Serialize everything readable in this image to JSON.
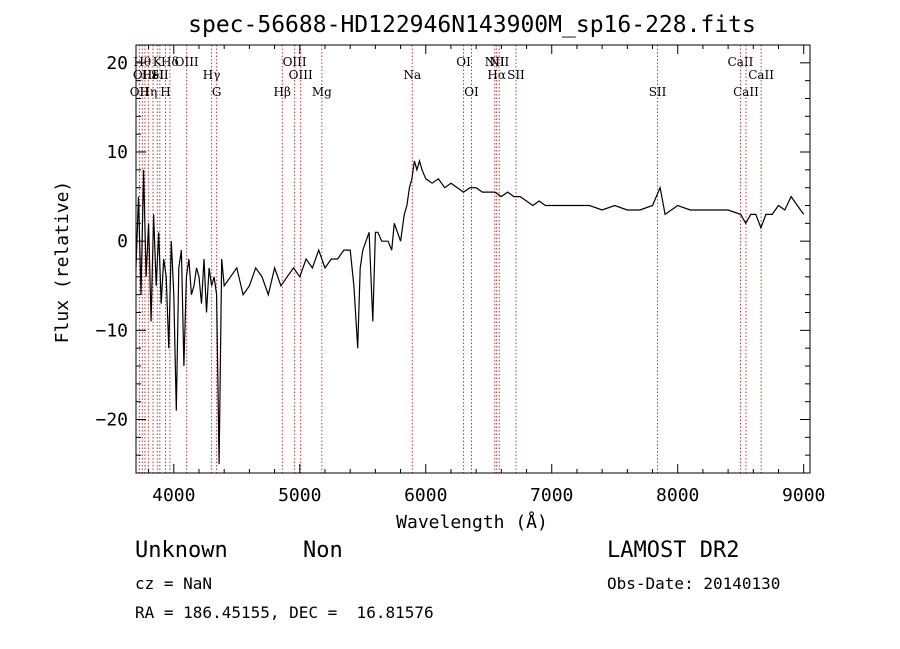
{
  "chart_data": {
    "type": "line",
    "title": "spec-56688-HD122946N143900M_sp16-228.fits",
    "xlabel": "Wavelength (Å)",
    "ylabel": "Flux (relative)",
    "xlim": [
      3700,
      9050
    ],
    "ylim": [
      -26,
      22
    ],
    "xticks": [
      4000,
      5000,
      6000,
      7000,
      8000,
      9000
    ],
    "yticks": [
      -20,
      -10,
      0,
      10,
      20
    ],
    "xtick_labels": [
      "4000",
      "5000",
      "6000",
      "7000",
      "8000",
      "9000"
    ],
    "ytick_labels": [
      "−20",
      "−10",
      "0",
      "10",
      "20"
    ],
    "grid": false,
    "line_color": "#000000",
    "marker_color": "#cc3333",
    "spectrum": {
      "x": [
        3700,
        3720,
        3740,
        3760,
        3780,
        3800,
        3820,
        3840,
        3860,
        3880,
        3900,
        3920,
        3940,
        3960,
        3980,
        4000,
        4020,
        4040,
        4060,
        4080,
        4100,
        4120,
        4140,
        4160,
        4180,
        4200,
        4220,
        4240,
        4260,
        4280,
        4300,
        4320,
        4340,
        4360,
        4380,
        4400,
        4450,
        4500,
        4550,
        4600,
        4650,
        4700,
        4750,
        4800,
        4850,
        4900,
        4950,
        5000,
        5050,
        5100,
        5150,
        5200,
        5250,
        5300,
        5350,
        5400,
        5430,
        5460,
        5480,
        5500,
        5550,
        5580,
        5600,
        5620,
        5650,
        5700,
        5730,
        5750,
        5800,
        5830,
        5850,
        5870,
        5890,
        5910,
        5930,
        5950,
        5970,
        6000,
        6050,
        6100,
        6150,
        6200,
        6250,
        6300,
        6350,
        6400,
        6450,
        6500,
        6550,
        6600,
        6650,
        6700,
        6750,
        6800,
        6850,
        6900,
        6950,
        7000,
        7100,
        7200,
        7300,
        7400,
        7500,
        7600,
        7700,
        7800,
        7830,
        7860,
        7900,
        8000,
        8100,
        8200,
        8300,
        8400,
        8500,
        8540,
        8580,
        8620,
        8660,
        8700,
        8750,
        8800,
        8850,
        8900,
        8950,
        9000
      ],
      "y": [
        -3,
        5,
        -6,
        8,
        -4,
        2,
        -9,
        3,
        -5,
        1,
        -7,
        -2,
        -4,
        -12,
        0,
        -6,
        -19,
        -3,
        -1,
        -14,
        -4,
        -2,
        -6,
        -5,
        -3,
        -4,
        -7,
        -2,
        -8,
        -3,
        -5,
        -4,
        -6,
        -25,
        -2,
        -5,
        -4,
        -3,
        -6,
        -5,
        -3,
        -4,
        -6,
        -3,
        -5,
        -4,
        -3,
        -4,
        -2,
        -3,
        -1,
        -3,
        -2,
        -2,
        -1,
        -1,
        -5,
        -12,
        -3,
        -1,
        1,
        -9,
        1,
        1,
        0,
        0,
        -1,
        2,
        0,
        3,
        4,
        6,
        7,
        9,
        8,
        9,
        8,
        7,
        6.5,
        7,
        6,
        6.5,
        6,
        5.5,
        6,
        6,
        5.5,
        5.5,
        5.5,
        5,
        5.5,
        5,
        5,
        4.5,
        4,
        4.5,
        4,
        4,
        4,
        4,
        4,
        3.5,
        4,
        3.5,
        3.5,
        4,
        5,
        6,
        3,
        4,
        3.5,
        3.5,
        3.5,
        3.5,
        3,
        2,
        3,
        3,
        1.5,
        3,
        3,
        4,
        3.5,
        5,
        4,
        3
      ]
    },
    "line_markers": [
      {
        "wavelength": 3727,
        "label": "OII",
        "row": 3
      },
      {
        "wavelength": 3750,
        "label": "Hθ",
        "row": 1
      },
      {
        "wavelength": 3771,
        "label": "OIII",
        "row": 2
      },
      {
        "wavelength": 3798,
        "label": "Hη",
        "row": 3
      },
      {
        "wavelength": 3835,
        "label": "HeI",
        "row": 2
      },
      {
        "wavelength": 3869,
        "label": "K",
        "row": 1
      },
      {
        "wavelength": 3889,
        "label": "SII",
        "row": 2
      },
      {
        "wavelength": 3934,
        "label": "H",
        "row": 3
      },
      {
        "wavelength": 3969,
        "label": "Hδ",
        "row": 1
      },
      {
        "wavelength": 4102,
        "label": "OIII",
        "row": 1
      },
      {
        "wavelength": 4300,
        "label": "Hγ",
        "row": 2
      },
      {
        "wavelength": 4340,
        "label": "G",
        "row": 3
      },
      {
        "wavelength": 4861,
        "label": "Hβ",
        "row": 3
      },
      {
        "wavelength": 4959,
        "label": "OIII",
        "row": 1
      },
      {
        "wavelength": 5007,
        "label": "OIII",
        "row": 2
      },
      {
        "wavelength": 5175,
        "label": "Mg",
        "row": 3
      },
      {
        "wavelength": 5893,
        "label": "Na",
        "row": 2
      },
      {
        "wavelength": 6300,
        "label": "OI",
        "row": 1
      },
      {
        "wavelength": 6363,
        "label": "OI",
        "row": 3
      },
      {
        "wavelength": 6548,
        "label": "NII",
        "row": 1
      },
      {
        "wavelength": 6563,
        "label": "Hα",
        "row": 2
      },
      {
        "wavelength": 6583,
        "label": "NII",
        "row": 1
      },
      {
        "wavelength": 6716,
        "label": "SII",
        "row": 2
      },
      {
        "wavelength": 7840,
        "label": "SII",
        "row": 3
      },
      {
        "wavelength": 8498,
        "label": "CaII",
        "row": 1
      },
      {
        "wavelength": 8542,
        "label": "CaII",
        "row": 3
      },
      {
        "wavelength": 8662,
        "label": "CaII",
        "row": 2
      }
    ]
  },
  "info": {
    "class_label": "Unknown",
    "subclass_label": "Non",
    "survey": "LAMOST DR2",
    "cz": "cz = NaN",
    "obs_date": "Obs-Date: 20140130",
    "coords": "RA = 186.45155, DEC =  16.81576"
  }
}
